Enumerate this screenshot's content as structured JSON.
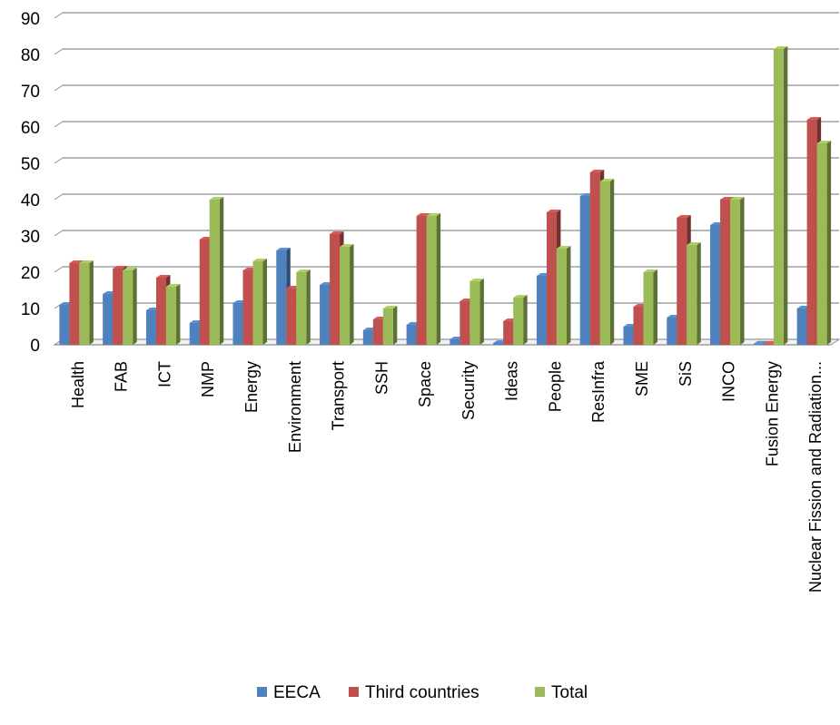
{
  "chart_data": {
    "type": "bar",
    "title": "",
    "xlabel": "",
    "ylabel": "",
    "ylim": [
      0,
      90
    ],
    "yticks": [
      0,
      10,
      20,
      30,
      40,
      50,
      60,
      70,
      80,
      90
    ],
    "grid": true,
    "legend_position": "bottom",
    "style": "3d-clustered-column",
    "categories": [
      "Health",
      "FAB",
      "ICT",
      "NMP",
      "Energy",
      "Environment",
      "Transport",
      "SSH",
      "Space",
      "Security",
      "Ideas",
      "People",
      "ResInfra",
      "SME",
      "SiS",
      "INCO",
      "Fusion Energy",
      "Nuclear Fission and Radiation..."
    ],
    "series": [
      {
        "name": "EECA",
        "color": "#4f81bd",
        "values": [
          11,
          14,
          9.5,
          6,
          11.5,
          26,
          16.5,
          4,
          5.5,
          1.5,
          0.5,
          19,
          41,
          5,
          7.5,
          33,
          0.3,
          10
        ]
      },
      {
        "name": "Third countries",
        "color": "#c0504d",
        "values": [
          22.5,
          21,
          18.5,
          29,
          20.5,
          15.5,
          30.5,
          7,
          35.5,
          12,
          6.5,
          36.5,
          47.5,
          10.5,
          35,
          40,
          0.3,
          62
        ]
      },
      {
        "name": "Total",
        "color": "#9bbb59",
        "values": [
          22.5,
          20.5,
          16,
          40,
          23,
          20,
          27,
          10,
          35.5,
          17.5,
          13,
          26.5,
          45,
          20,
          27.5,
          40,
          81.5,
          55.5
        ]
      }
    ]
  }
}
